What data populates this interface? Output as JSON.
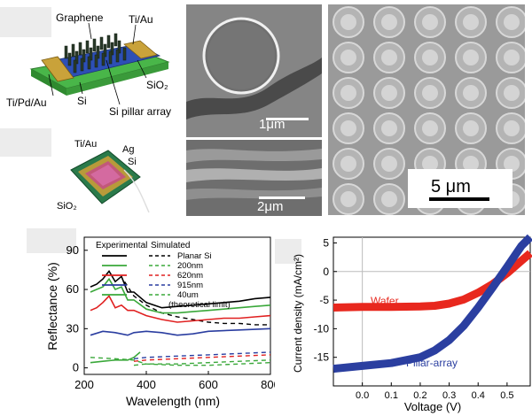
{
  "panels": {
    "device_schematic": {
      "labels": [
        "Graphene",
        "Ti/Au",
        "SiO₂",
        "Ti/Pd/Au",
        "Si",
        "Si pillar array"
      ]
    },
    "device_photo": {
      "labels": [
        "Ti/Au",
        "Ag",
        "Si",
        "SiO₂"
      ]
    },
    "sem_top": {
      "scale_label": "1μm"
    },
    "sem_cross": {
      "scale_label": "2μm"
    },
    "sem_array": {
      "scale_label": "5 μm"
    }
  },
  "chart_data": [
    {
      "type": "line",
      "title": "",
      "xlabel": "Wavelength (nm)",
      "ylabel": "Reflectance (%)",
      "xlim": [
        200,
        800
      ],
      "ylim": [
        -5,
        100
      ],
      "xticks": [
        200,
        400,
        600,
        800
      ],
      "yticks": [
        0,
        30,
        60,
        90
      ],
      "legend": {
        "col_experimental": "Experimental",
        "col_simulated": "Simulated",
        "entries": [
          "Planar Si",
          "200nm",
          "620nm",
          "915nm",
          "40um",
          "(theoretical limit)"
        ]
      },
      "series": [
        {
          "name": "Planar Si (exp)",
          "color": "#000000",
          "style": "solid",
          "x": [
            220,
            240,
            260,
            280,
            300,
            320,
            340,
            360,
            400,
            450,
            500,
            550,
            600,
            650,
            700,
            750,
            800
          ],
          "y": [
            62,
            64,
            68,
            74,
            66,
            70,
            58,
            58,
            50,
            46,
            47,
            48,
            49,
            50,
            51,
            53,
            54
          ]
        },
        {
          "name": "Planar Si (sim)",
          "color": "#000000",
          "style": "dashed",
          "x": [
            330,
            360,
            400,
            450,
            500,
            550,
            600,
            650,
            700,
            750,
            800
          ],
          "y": [
            66,
            55,
            48,
            42,
            39,
            37,
            35,
            34,
            34,
            33,
            33
          ]
        },
        {
          "name": "200nm (exp)",
          "color": "#3aa83a",
          "style": "solid",
          "x": [
            220,
            240,
            260,
            280,
            300,
            320,
            340,
            360,
            400,
            450,
            500,
            550,
            600,
            650,
            700,
            750,
            800
          ],
          "y": [
            58,
            60,
            62,
            68,
            60,
            62,
            52,
            52,
            45,
            42,
            42,
            43,
            44,
            45,
            46,
            47,
            48
          ]
        },
        {
          "name": "620nm (exp)",
          "color": "#e02020",
          "style": "solid",
          "x": [
            220,
            240,
            260,
            280,
            300,
            320,
            340,
            360,
            400,
            450,
            500,
            550,
            600,
            650,
            700,
            750,
            800
          ],
          "y": [
            44,
            46,
            50,
            55,
            46,
            48,
            44,
            44,
            40,
            37,
            35,
            36,
            37,
            38,
            38,
            39,
            40
          ]
        },
        {
          "name": "915nm (exp)",
          "color": "#2a3da0",
          "style": "solid",
          "x": [
            220,
            260,
            300,
            340,
            360,
            400,
            450,
            500,
            550,
            600,
            700,
            800
          ],
          "y": [
            25,
            28,
            27,
            25,
            27,
            28,
            27,
            25,
            26,
            28,
            29,
            30
          ]
        },
        {
          "name": "40um (exp)",
          "color": "#3aa83a",
          "style": "solid",
          "x": [
            220,
            260,
            300,
            340,
            360,
            380
          ],
          "y": [
            4,
            5,
            6,
            6,
            8,
            12
          ]
        },
        {
          "name": "200nm (sim)",
          "color": "#3aa83a",
          "style": "dashed",
          "x": [
            220,
            300,
            360,
            400,
            500,
            600,
            700,
            800
          ],
          "y": [
            8,
            7,
            6,
            3,
            2,
            2,
            3,
            4
          ]
        },
        {
          "name": "620nm (sim)",
          "color": "#e02020",
          "style": "dashed",
          "x": [
            360,
            400,
            500,
            600,
            700,
            800
          ],
          "y": [
            5,
            6,
            7,
            8,
            9,
            10
          ]
        },
        {
          "name": "915nm (sim)",
          "color": "#2a3da0",
          "style": "dashed",
          "x": [
            360,
            400,
            500,
            600,
            700,
            800
          ],
          "y": [
            7,
            8,
            9,
            10,
            11,
            12
          ]
        },
        {
          "name": "40um (sim)",
          "color": "#3aa83a",
          "style": "dashed",
          "x": [
            360,
            400,
            500,
            600,
            700,
            800
          ],
          "y": [
            2,
            3,
            3,
            4,
            5,
            6
          ]
        }
      ]
    },
    {
      "type": "line",
      "title": "",
      "xlabel": "Voltage (V)",
      "ylabel": "Current density (mA/cm²)",
      "xlim": [
        -0.1,
        0.58
      ],
      "ylim": [
        -20,
        6
      ],
      "xticks": [
        0.0,
        0.1,
        0.2,
        0.3,
        0.4,
        0.5
      ],
      "xtick_labels": [
        "0.0",
        "0.1",
        "0.2",
        "0.3",
        "0.4",
        "0.5"
      ],
      "yticks": [
        5,
        0,
        -5,
        -10,
        -15
      ],
      "ytick_labels": [
        "5",
        "0",
        "-5",
        "-10",
        "-15"
      ],
      "annotations": {
        "wafer": "Wafer",
        "pillar": "Pillar-array"
      },
      "series": [
        {
          "name": "Wafer",
          "color": "#e8281e",
          "x": [
            -0.1,
            0.0,
            0.1,
            0.2,
            0.25,
            0.3,
            0.35,
            0.4,
            0.45,
            0.5,
            0.55,
            0.58
          ],
          "y": [
            -6.3,
            -6.2,
            -6.2,
            -6.1,
            -6.0,
            -5.6,
            -4.9,
            -3.7,
            -2.2,
            -0.3,
            1.9,
            3.2
          ]
        },
        {
          "name": "Pillar-array",
          "color": "#2b3fa0",
          "x": [
            -0.1,
            0.0,
            0.1,
            0.2,
            0.25,
            0.3,
            0.35,
            0.4,
            0.45,
            0.5,
            0.55,
            0.58
          ],
          "y": [
            -17.0,
            -16.5,
            -16.0,
            -15.0,
            -13.8,
            -12.0,
            -9.5,
            -6.3,
            -2.8,
            0.8,
            4.5,
            6.0
          ]
        }
      ]
    }
  ]
}
